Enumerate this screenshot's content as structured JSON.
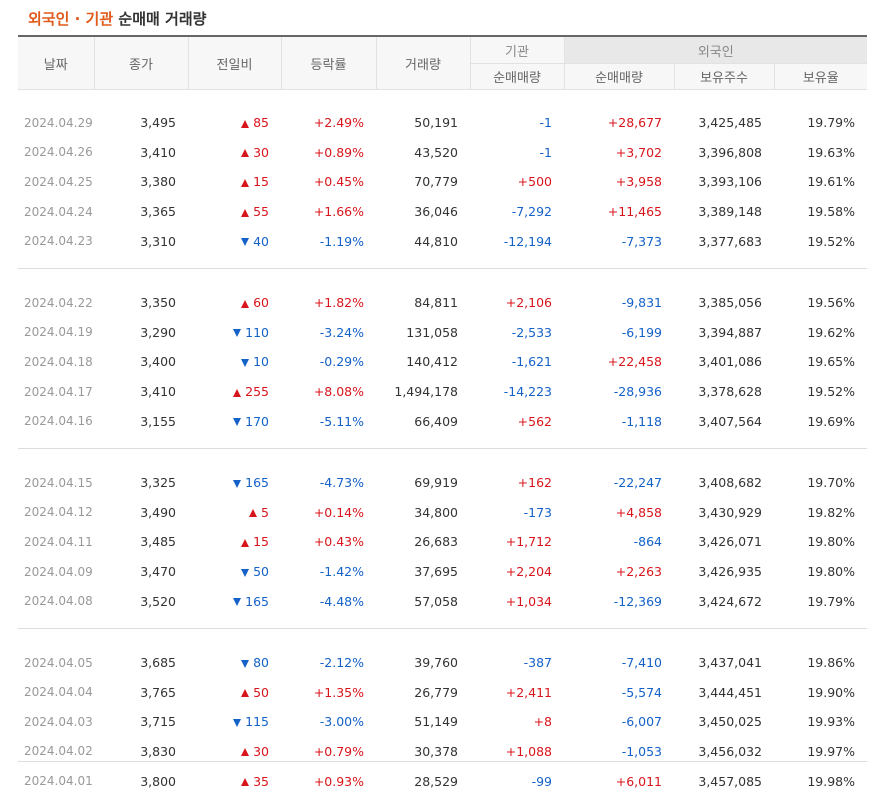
{
  "title": {
    "part1": "외국인 · 기관",
    "part2": "순매매 거래량"
  },
  "headers": {
    "date": "날짜",
    "close": "종가",
    "change": "전일비",
    "rate": "등락률",
    "volume": "거래량",
    "inst_group": "기관",
    "inst_net": "순매매량",
    "foreign_group": "외국인",
    "foreign_net": "순매매량",
    "foreign_shares": "보유주수",
    "foreign_ratio": "보유율"
  },
  "rows": [
    {
      "date": "2024.04.29",
      "close": "3,495",
      "dir": "up",
      "change": "85",
      "rate": "+2.49%",
      "volume": "50,191",
      "inst": "-1",
      "foreign": "+28,677",
      "shares": "3,425,485",
      "ratio": "19.79%"
    },
    {
      "date": "2024.04.26",
      "close": "3,410",
      "dir": "up",
      "change": "30",
      "rate": "+0.89%",
      "volume": "43,520",
      "inst": "-1",
      "foreign": "+3,702",
      "shares": "3,396,808",
      "ratio": "19.63%"
    },
    {
      "date": "2024.04.25",
      "close": "3,380",
      "dir": "up",
      "change": "15",
      "rate": "+0.45%",
      "volume": "70,779",
      "inst": "+500",
      "foreign": "+3,958",
      "shares": "3,393,106",
      "ratio": "19.61%"
    },
    {
      "date": "2024.04.24",
      "close": "3,365",
      "dir": "up",
      "change": "55",
      "rate": "+1.66%",
      "volume": "36,046",
      "inst": "-7,292",
      "foreign": "+11,465",
      "shares": "3,389,148",
      "ratio": "19.58%"
    },
    {
      "date": "2024.04.23",
      "close": "3,310",
      "dir": "down",
      "change": "40",
      "rate": "-1.19%",
      "volume": "44,810",
      "inst": "-12,194",
      "foreign": "-7,373",
      "shares": "3,377,683",
      "ratio": "19.52%"
    },
    {
      "date": "2024.04.22",
      "close": "3,350",
      "dir": "up",
      "change": "60",
      "rate": "+1.82%",
      "volume": "84,811",
      "inst": "+2,106",
      "foreign": "-9,831",
      "shares": "3,385,056",
      "ratio": "19.56%"
    },
    {
      "date": "2024.04.19",
      "close": "3,290",
      "dir": "down",
      "change": "110",
      "rate": "-3.24%",
      "volume": "131,058",
      "inst": "-2,533",
      "foreign": "-6,199",
      "shares": "3,394,887",
      "ratio": "19.62%"
    },
    {
      "date": "2024.04.18",
      "close": "3,400",
      "dir": "down",
      "change": "10",
      "rate": "-0.29%",
      "volume": "140,412",
      "inst": "-1,621",
      "foreign": "+22,458",
      "shares": "3,401,086",
      "ratio": "19.65%"
    },
    {
      "date": "2024.04.17",
      "close": "3,410",
      "dir": "up",
      "change": "255",
      "rate": "+8.08%",
      "volume": "1,494,178",
      "inst": "-14,223",
      "foreign": "-28,936",
      "shares": "3,378,628",
      "ratio": "19.52%"
    },
    {
      "date": "2024.04.16",
      "close": "3,155",
      "dir": "down",
      "change": "170",
      "rate": "-5.11%",
      "volume": "66,409",
      "inst": "+562",
      "foreign": "-1,118",
      "shares": "3,407,564",
      "ratio": "19.69%"
    },
    {
      "date": "2024.04.15",
      "close": "3,325",
      "dir": "down",
      "change": "165",
      "rate": "-4.73%",
      "volume": "69,919",
      "inst": "+162",
      "foreign": "-22,247",
      "shares": "3,408,682",
      "ratio": "19.70%"
    },
    {
      "date": "2024.04.12",
      "close": "3,490",
      "dir": "up",
      "change": "5",
      "rate": "+0.14%",
      "volume": "34,800",
      "inst": "-173",
      "foreign": "+4,858",
      "shares": "3,430,929",
      "ratio": "19.82%"
    },
    {
      "date": "2024.04.11",
      "close": "3,485",
      "dir": "up",
      "change": "15",
      "rate": "+0.43%",
      "volume": "26,683",
      "inst": "+1,712",
      "foreign": "-864",
      "shares": "3,426,071",
      "ratio": "19.80%"
    },
    {
      "date": "2024.04.09",
      "close": "3,470",
      "dir": "down",
      "change": "50",
      "rate": "-1.42%",
      "volume": "37,695",
      "inst": "+2,204",
      "foreign": "+2,263",
      "shares": "3,426,935",
      "ratio": "19.80%"
    },
    {
      "date": "2024.04.08",
      "close": "3,520",
      "dir": "down",
      "change": "165",
      "rate": "-4.48%",
      "volume": "57,058",
      "inst": "+1,034",
      "foreign": "-12,369",
      "shares": "3,424,672",
      "ratio": "19.79%"
    },
    {
      "date": "2024.04.05",
      "close": "3,685",
      "dir": "down",
      "change": "80",
      "rate": "-2.12%",
      "volume": "39,760",
      "inst": "-387",
      "foreign": "-7,410",
      "shares": "3,437,041",
      "ratio": "19.86%"
    },
    {
      "date": "2024.04.04",
      "close": "3,765",
      "dir": "up",
      "change": "50",
      "rate": "+1.35%",
      "volume": "26,779",
      "inst": "+2,411",
      "foreign": "-5,574",
      "shares": "3,444,451",
      "ratio": "19.90%"
    },
    {
      "date": "2024.04.03",
      "close": "3,715",
      "dir": "down",
      "change": "115",
      "rate": "-3.00%",
      "volume": "51,149",
      "inst": "+8",
      "foreign": "-6,007",
      "shares": "3,450,025",
      "ratio": "19.93%"
    },
    {
      "date": "2024.04.02",
      "close": "3,830",
      "dir": "up",
      "change": "30",
      "rate": "+0.79%",
      "volume": "30,378",
      "inst": "+1,088",
      "foreign": "-1,053",
      "shares": "3,456,032",
      "ratio": "19.97%"
    },
    {
      "date": "2024.04.01",
      "close": "3,800",
      "dir": "up",
      "change": "35",
      "rate": "+0.93%",
      "volume": "28,529",
      "inst": "-99",
      "foreign": "+6,011",
      "shares": "3,457,085",
      "ratio": "19.98%"
    }
  ],
  "colors": {
    "up": "#d8151c",
    "down": "#1461c8",
    "accent": "#e05a1b"
  }
}
